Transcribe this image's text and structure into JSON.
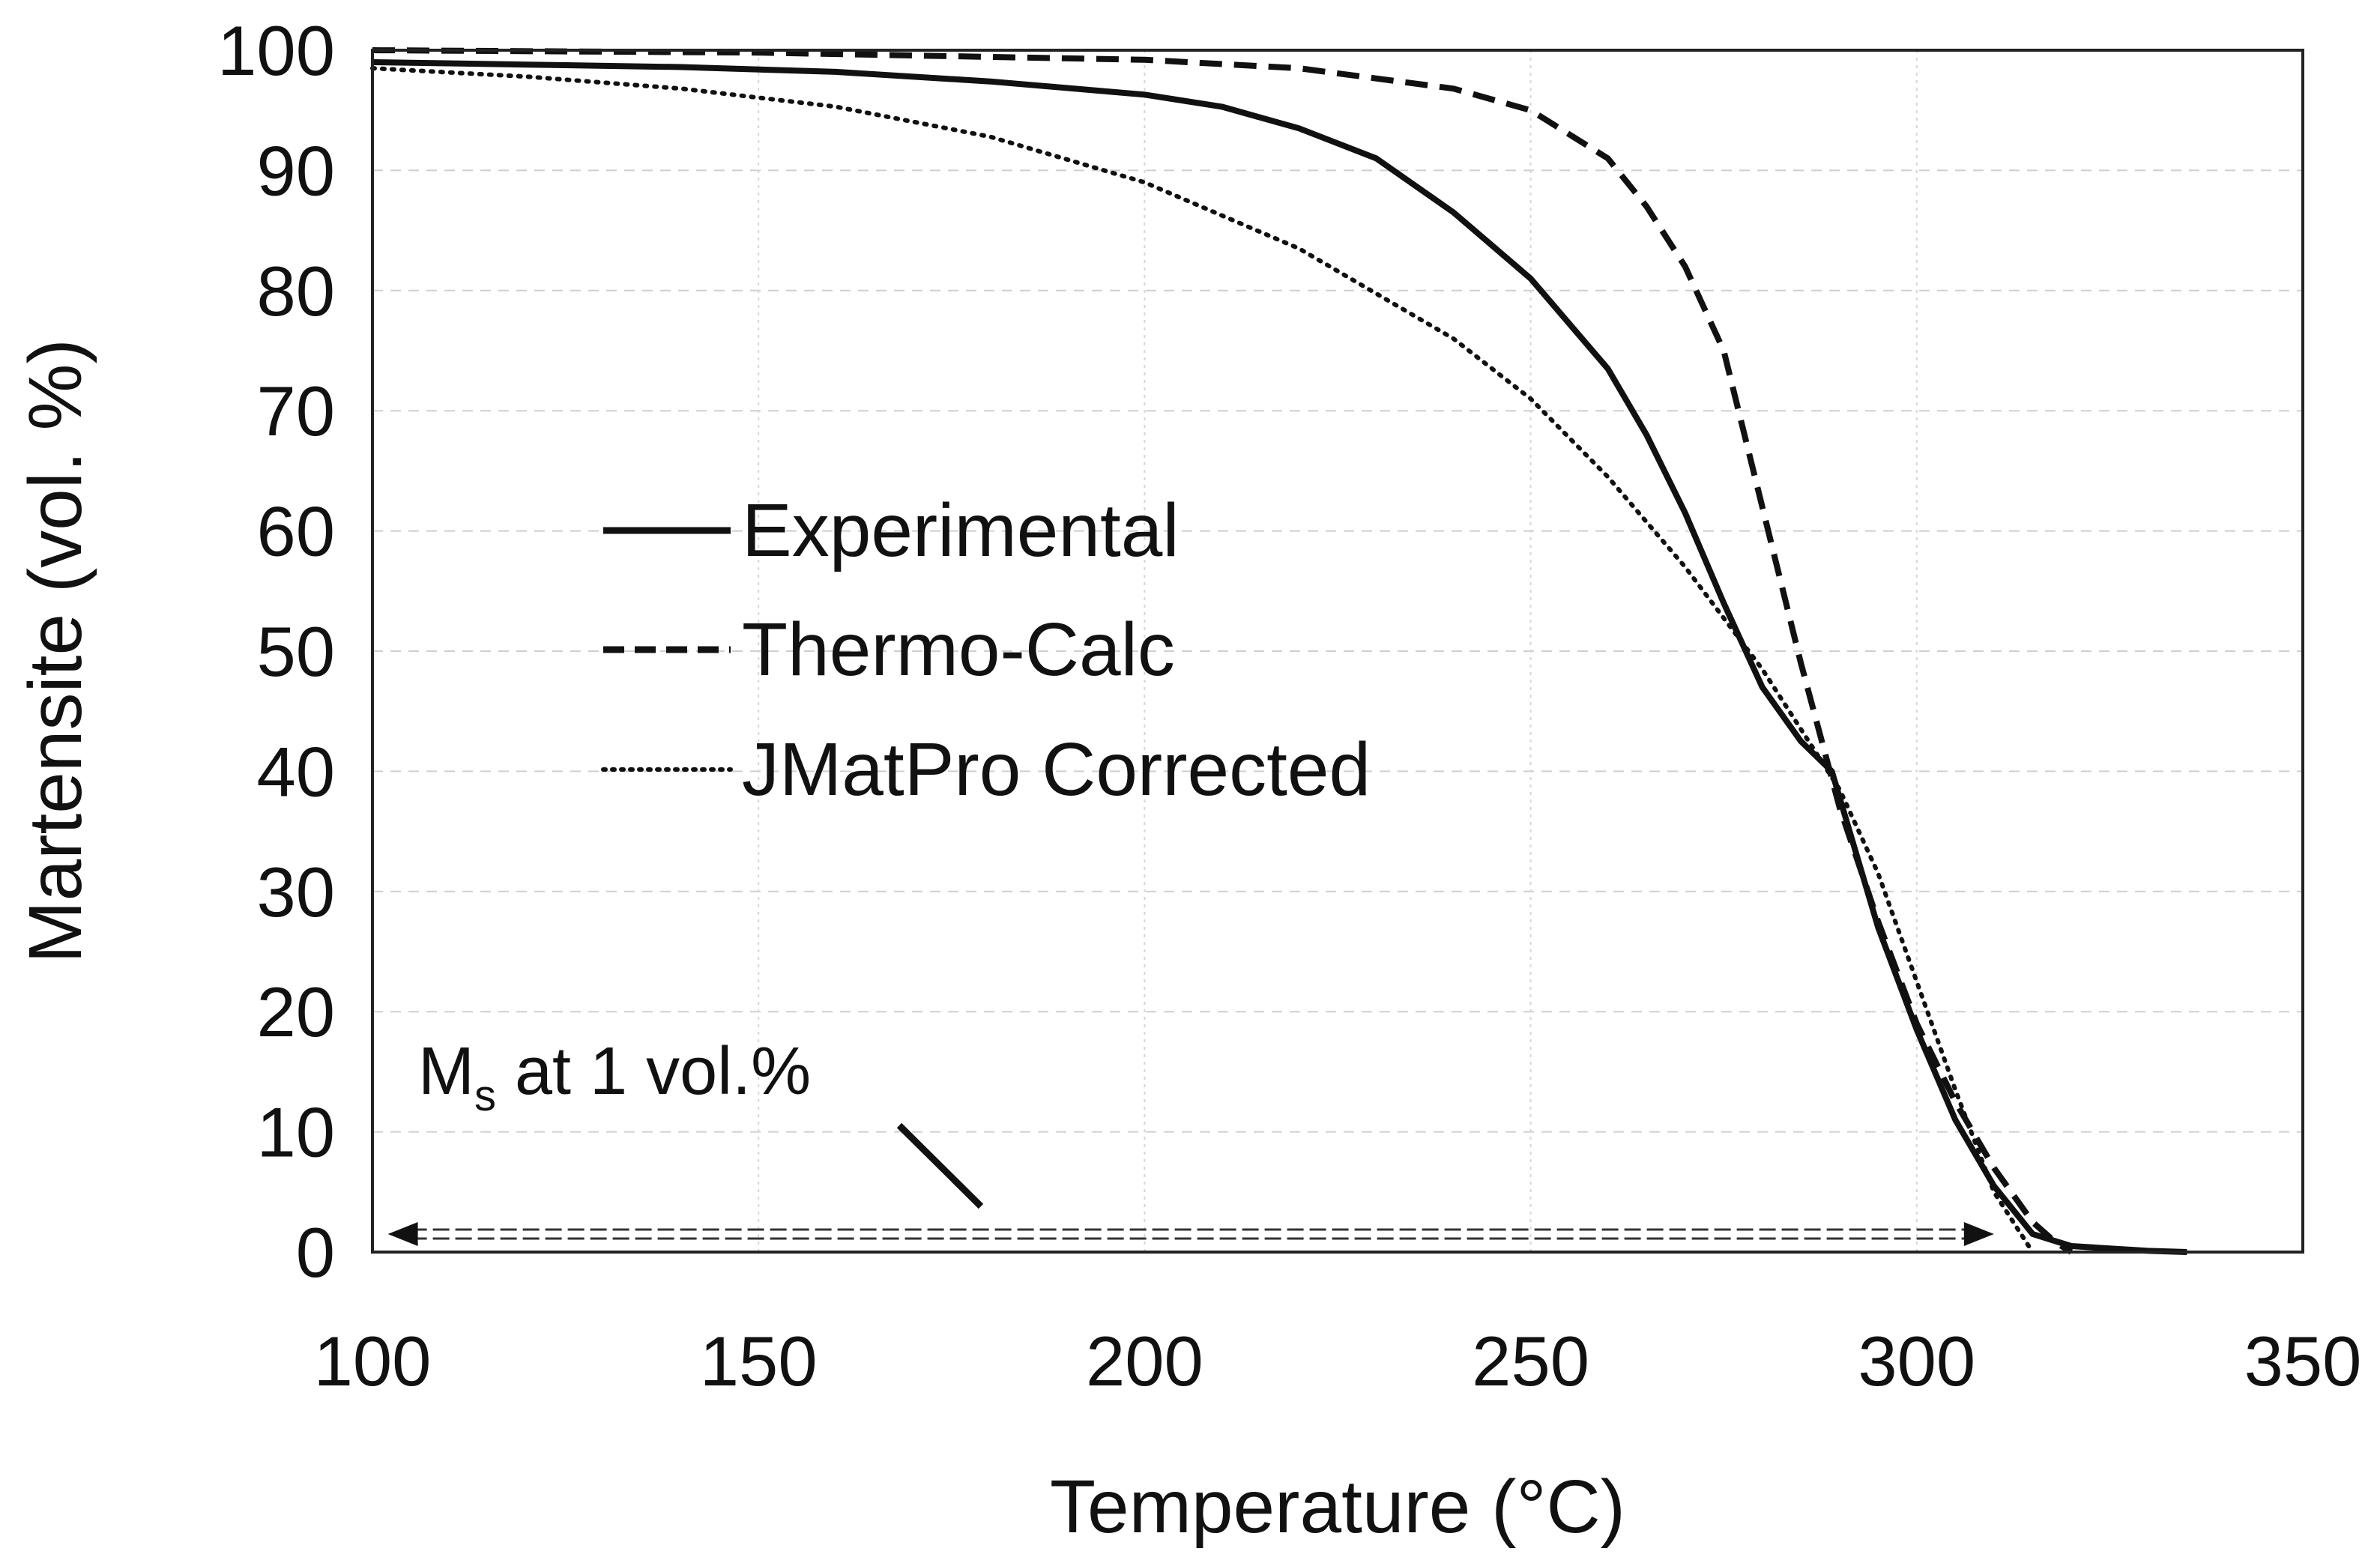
{
  "chart_data": {
    "type": "line",
    "title": "",
    "xlabel": "Temperature (°C)",
    "ylabel": "Martensite (vol. %)",
    "xlim": [
      100,
      350
    ],
    "ylim": [
      0,
      100
    ],
    "xticks": [
      100,
      150,
      200,
      250,
      300,
      350
    ],
    "yticks": [
      0,
      10,
      20,
      30,
      40,
      50,
      60,
      70,
      80,
      90,
      100
    ],
    "grid": true,
    "legend_position": "center-left",
    "series": [
      {
        "name": "Experimental",
        "style": "solid",
        "x": [
          100,
          120,
          140,
          160,
          180,
          200,
          210,
          220,
          230,
          240,
          250,
          260,
          265,
          270,
          275,
          280,
          285,
          289,
          292,
          295,
          300,
          305,
          310,
          315,
          320,
          325,
          330,
          335
        ],
        "y": [
          99,
          98.8,
          98.6,
          98.2,
          97.4,
          96.3,
          95.3,
          93.5,
          91,
          86.5,
          81,
          73.5,
          68,
          61.5,
          54,
          47,
          42.5,
          40,
          33.5,
          27,
          18.5,
          11,
          5.5,
          1.5,
          0.5,
          0.3,
          0.1,
          0
        ]
      },
      {
        "name": "Thermo-Calc",
        "style": "dashed",
        "x": [
          100,
          150,
          200,
          220,
          240,
          250,
          260,
          265,
          270,
          275,
          280,
          285,
          290,
          295,
          300,
          305,
          310,
          315,
          318,
          320
        ],
        "y": [
          100,
          99.8,
          99.2,
          98.5,
          96.8,
          95,
          91,
          87,
          82,
          75,
          62,
          49,
          37,
          27.5,
          19,
          12.5,
          7,
          2.5,
          0.8,
          0
        ]
      },
      {
        "name": "JMatPro Corrected",
        "style": "dotted",
        "x": [
          100,
          120,
          140,
          160,
          180,
          200,
          220,
          240,
          250,
          260,
          270,
          280,
          290,
          295,
          300,
          305,
          310,
          315
        ],
        "y": [
          98.5,
          97.8,
          96.8,
          95.3,
          92.8,
          89,
          83.5,
          76,
          71,
          64.5,
          57,
          48.5,
          38.5,
          31.5,
          22.5,
          13.5,
          5,
          0
        ]
      }
    ],
    "annotations": [
      {
        "text_main": "M",
        "text_sub": "s",
        "text_rest": " at  1 vol.%",
        "arrow_from_x": 102,
        "arrow_to_x": 310,
        "arrow_y": 1
      }
    ]
  }
}
